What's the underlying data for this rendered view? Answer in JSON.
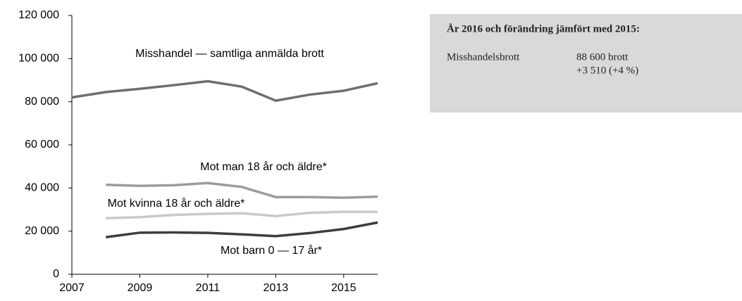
{
  "chart_data": {
    "type": "line",
    "x": [
      2007,
      2008,
      2009,
      2010,
      2011,
      2012,
      2013,
      2014,
      2015,
      2016
    ],
    "series": [
      {
        "name": "Misshandel — samtliga anmälda brott",
        "color": "#6e6e6e",
        "values": [
          82000,
          84500,
          86000,
          87700,
          89500,
          87000,
          80500,
          83300,
          85100,
          88600
        ]
      },
      {
        "name": "Mot man 18 år och äldre*",
        "color": "#9c9c9c",
        "values": [
          null,
          41500,
          41000,
          41300,
          42300,
          40500,
          35800,
          35800,
          35500,
          36000
        ]
      },
      {
        "name": "Mot kvinna 18 år och äldre*",
        "color": "#c9c9c9",
        "values": [
          null,
          26000,
          26500,
          27500,
          28000,
          28300,
          27000,
          28500,
          29000,
          29000
        ]
      },
      {
        "name": "Mot barn 0 — 17 år*",
        "color": "#3d3d3d",
        "values": [
          null,
          17200,
          19300,
          19400,
          19200,
          18500,
          17700,
          19100,
          21000,
          24000
        ]
      }
    ],
    "xlim": [
      2007,
      2016
    ],
    "xticks": [
      2007,
      2009,
      2011,
      2013,
      2015
    ],
    "ylim": [
      0,
      120000
    ],
    "yticks": [
      0,
      {
        "value": 20000,
        "label": "20 000"
      },
      {
        "value": 40000,
        "label": "40 000"
      },
      {
        "value": 60000,
        "label": "60 000"
      },
      {
        "value": 80000,
        "label": "80 000"
      },
      {
        "value": 100000,
        "label": "100 000"
      },
      {
        "value": 120000,
        "label": "120 000"
      }
    ],
    "grid": false
  },
  "info_box": {
    "title": "År 2016 och förändring jämfört med 2015:",
    "rows": [
      {
        "label": "Misshandelsbrott",
        "lines": [
          "88 600 brott",
          "+3 510 (+4 %)"
        ]
      }
    ]
  }
}
